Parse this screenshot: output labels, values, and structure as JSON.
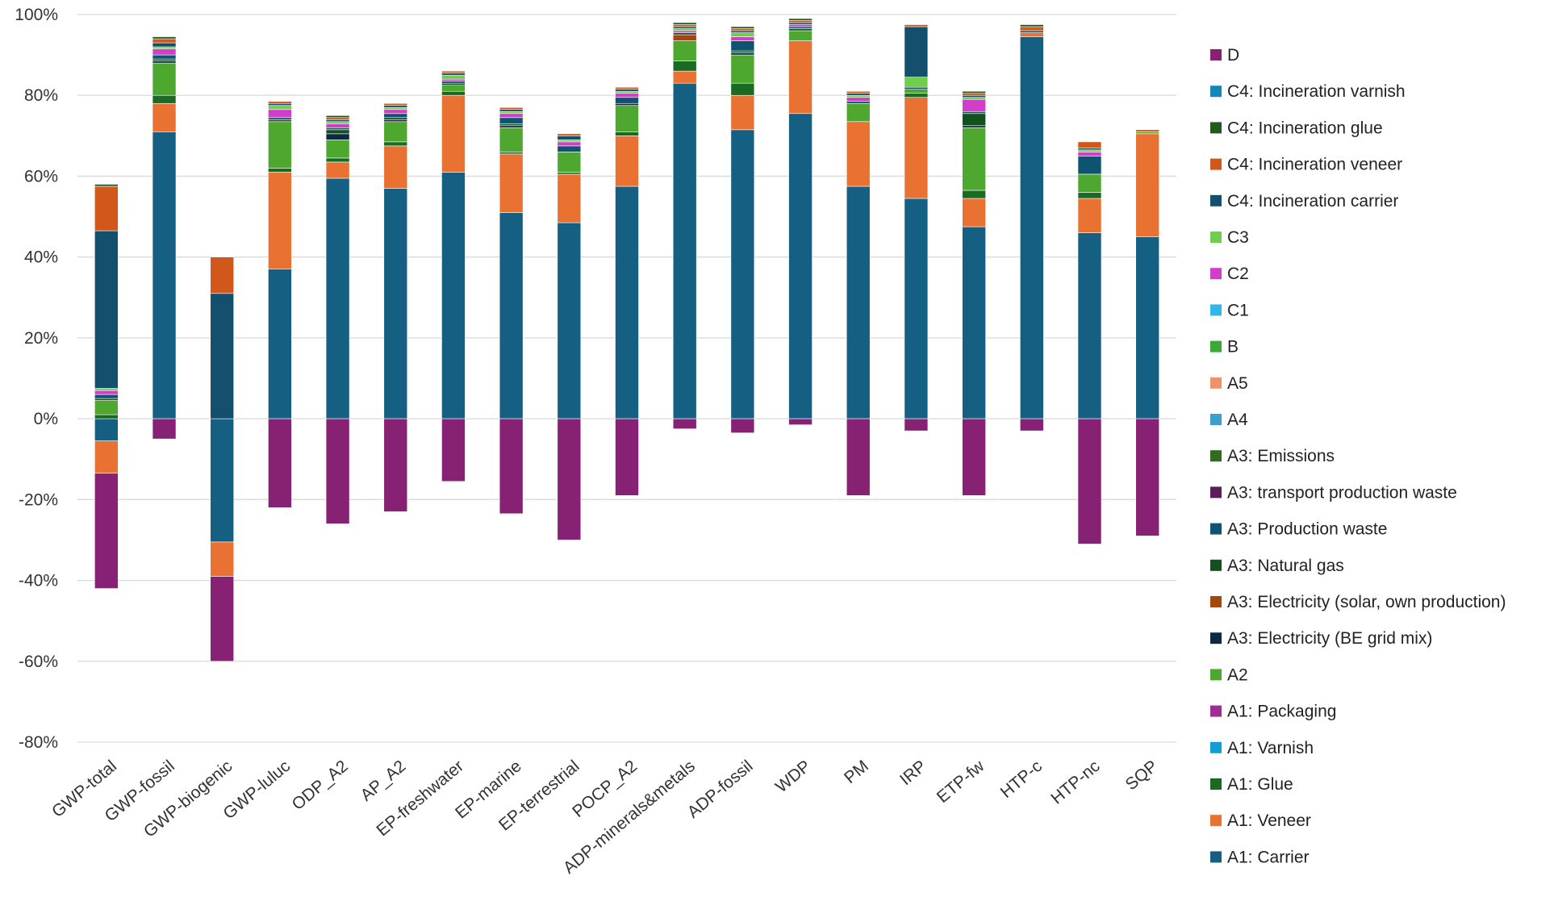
{
  "chart_data": {
    "type": "bar",
    "stacked": true,
    "ylim": [
      -80,
      100
    ],
    "yticks": [
      -80,
      -60,
      -40,
      -20,
      0,
      20,
      40,
      60,
      80,
      100
    ],
    "ytick_labels": [
      "-80%",
      "-60%",
      "-40%",
      "-20%",
      "0%",
      "20%",
      "40%",
      "60%",
      "80%",
      "100%"
    ],
    "grid": true,
    "legend_position": "right",
    "categories": [
      "GWP-total",
      "GWP-fossil",
      "GWP-biogenic",
      "GWP-luluc",
      "ODP_A2",
      "AP_A2",
      "EP-freshwater",
      "EP-marine",
      "EP-terrestrial",
      "POCP_A2",
      "ADP-minerals&metals",
      "ADP-fossil",
      "WDP",
      "PM",
      "IRP",
      "ETP-fw",
      "HTP-c",
      "HTP-nc",
      "SQP"
    ],
    "series": [
      {
        "name": "A1: Carrier",
        "color": "#156082",
        "values": [
          -5.5,
          71,
          -30.5,
          37,
          59.5,
          57,
          61,
          51,
          48.5,
          57.5,
          83,
          71.5,
          75.5,
          57.5,
          54.5,
          47.5,
          94.5,
          46,
          45
        ]
      },
      {
        "name": "A1: Veneer",
        "color": "#E97132",
        "values": [
          -8,
          7,
          -8.5,
          24,
          4,
          10.5,
          19,
          14.5,
          12,
          12.5,
          3,
          8.5,
          18,
          16,
          25,
          7,
          1,
          8.5,
          25.5
        ]
      },
      {
        "name": "A1: Glue",
        "color": "#196B24",
        "values": [
          1,
          2,
          0,
          1,
          1,
          1,
          1,
          0.5,
          0.5,
          1,
          2.5,
          3,
          0,
          0,
          1,
          2,
          0,
          1.5,
          0
        ]
      },
      {
        "name": "A1: Varnish",
        "color": "#0F9ED5",
        "values": [
          0,
          0,
          0,
          0,
          0,
          0,
          0,
          0,
          0,
          0,
          0,
          0,
          0,
          0,
          0,
          0,
          0,
          0,
          0
        ]
      },
      {
        "name": "A1: Packaging",
        "color": "#A02B93",
        "values": [
          0,
          0,
          0,
          0,
          0,
          0,
          0,
          0,
          0,
          0,
          0,
          0,
          0,
          0,
          0,
          0,
          0,
          0,
          0
        ]
      },
      {
        "name": "A2",
        "color": "#4EA72E",
        "values": [
          3.5,
          8,
          0,
          11.5,
          4.5,
          5,
          1.5,
          6,
          5,
          6.5,
          5,
          7,
          2.5,
          4.5,
          1,
          15.5,
          0,
          4.5,
          0.5
        ]
      },
      {
        "name": "A3: Electricity (BE grid mix)",
        "color": "#0E2841",
        "values": [
          0,
          0.5,
          0,
          0,
          1.5,
          0.5,
          0,
          0.5,
          0,
          0.5,
          0,
          0.5,
          0,
          0,
          0,
          0.5,
          0,
          0,
          0
        ]
      },
      {
        "name": "A3: Electricity (solar, own production)",
        "color": "#A5460E",
        "values": [
          0,
          0,
          0,
          0,
          0,
          0,
          0,
          0,
          0,
          0,
          1.5,
          0,
          0,
          0,
          0,
          0,
          0,
          0,
          0
        ]
      },
      {
        "name": "A3: Natural gas",
        "color": "#12501C",
        "values": [
          0.5,
          0.5,
          0,
          0.5,
          1,
          0.5,
          0.5,
          0.5,
          0,
          0,
          0.5,
          0.5,
          0.5,
          0,
          0,
          3,
          0,
          0,
          0
        ]
      },
      {
        "name": "A3: Production waste",
        "color": "#0E5470",
        "values": [
          1,
          1,
          0,
          0.5,
          0.5,
          1,
          0.5,
          1.5,
          1.5,
          1.5,
          0,
          2.5,
          0.5,
          0.5,
          0.5,
          0.5,
          0,
          4.5,
          0
        ]
      },
      {
        "name": "A3: transport production waste",
        "color": "#5C1E56",
        "values": [
          0,
          0,
          0,
          0,
          0,
          0,
          0,
          0,
          0,
          0,
          0,
          0,
          0,
          0,
          0,
          0,
          0,
          0,
          0
        ]
      },
      {
        "name": "A3: Emissions",
        "color": "#2F6D1D",
        "values": [
          0,
          0,
          0,
          0,
          0,
          0,
          0,
          0,
          0,
          0,
          0,
          0,
          0,
          0,
          0,
          0,
          0,
          0,
          0
        ]
      },
      {
        "name": "A4",
        "color": "#3B9FD0",
        "values": [
          0,
          0,
          0,
          0,
          0,
          0,
          0,
          0,
          0,
          0,
          0,
          0,
          0,
          0,
          0,
          0,
          0,
          0,
          0
        ]
      },
      {
        "name": "A5",
        "color": "#F1916B",
        "values": [
          0,
          0,
          0,
          0,
          0,
          0,
          0,
          0,
          0,
          0,
          0,
          0,
          0,
          0,
          0,
          0,
          0,
          0,
          0
        ]
      },
      {
        "name": "B",
        "color": "#3BAA35",
        "values": [
          0,
          0,
          0,
          0,
          0,
          0,
          0,
          0,
          0,
          0,
          0,
          0,
          0,
          0,
          0,
          0,
          0,
          0,
          0
        ]
      },
      {
        "name": "C1",
        "color": "#35B6EA",
        "values": [
          0,
          0,
          0,
          0,
          0,
          0,
          0,
          0,
          0,
          0,
          0,
          0,
          0,
          0,
          0,
          0,
          0,
          0,
          0
        ]
      },
      {
        "name": "C2",
        "color": "#D13ECB",
        "values": [
          1,
          1.5,
          0,
          2,
          1,
          1,
          0.5,
          1,
          1,
          1,
          0.5,
          1,
          0.5,
          1,
          0,
          3,
          0,
          1,
          0
        ]
      },
      {
        "name": "C3",
        "color": "#6FCF4B",
        "values": [
          0.5,
          0.5,
          0,
          1,
          0.5,
          0.5,
          1,
          0.5,
          0.5,
          0.5,
          0.5,
          1,
          0,
          0.5,
          2.5,
          0.5,
          0,
          0.5,
          0
        ]
      },
      {
        "name": "C4: Incineration carrier",
        "color": "#154F6E",
        "values": [
          39,
          1,
          31,
          0.5,
          0.5,
          0.5,
          0.5,
          0.5,
          1,
          0.5,
          0.5,
          0.5,
          0.5,
          0.5,
          12.5,
          0.5,
          0.5,
          0.5,
          0
        ]
      },
      {
        "name": "C4: Incineration veneer",
        "color": "#D2571A",
        "values": [
          11,
          1,
          9,
          0.5,
          0.5,
          0.5,
          0.5,
          0.5,
          0.5,
          0.5,
          0.5,
          0.5,
          0.5,
          0.5,
          0.5,
          0.5,
          1,
          1.5,
          0.5
        ]
      },
      {
        "name": "C4: Incineration glue",
        "color": "#1E5A22",
        "values": [
          0.5,
          0.5,
          0,
          0,
          0.5,
          0,
          0,
          0,
          0,
          0,
          0.5,
          0.5,
          0.5,
          0,
          0,
          0.5,
          0.5,
          0,
          0
        ]
      },
      {
        "name": "C4: Incineration varnish",
        "color": "#1786B8",
        "values": [
          0,
          0,
          0,
          0,
          0,
          0,
          0,
          0,
          0,
          0,
          0,
          0,
          0,
          0,
          0,
          0,
          0,
          0,
          0
        ]
      },
      {
        "name": "D",
        "color": "#862174",
        "values": [
          -28.5,
          -5,
          -21,
          -22,
          -26,
          -23,
          -15.5,
          -23.5,
          -30,
          -19,
          -2.5,
          -3.5,
          -1.5,
          -19,
          -3,
          -19,
          -3,
          -31,
          -29
        ]
      }
    ]
  }
}
